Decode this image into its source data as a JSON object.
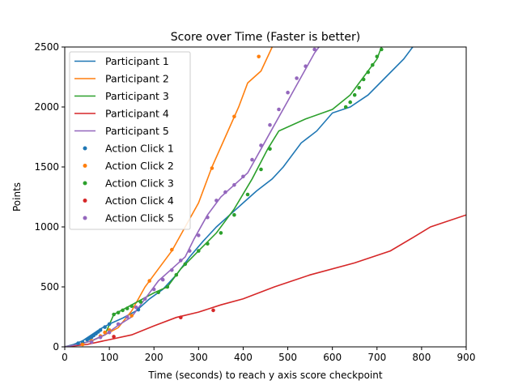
{
  "chart_data": {
    "type": "line",
    "title": "Score over Time (Faster is better)",
    "xlabel": "Time (seconds) to reach y axis score checkpoint",
    "ylabel": "Points",
    "xlim": [
      0,
      900
    ],
    "ylim": [
      0,
      2500
    ],
    "xticks": [
      0,
      100,
      200,
      300,
      400,
      500,
      600,
      700,
      800,
      900
    ],
    "yticks": [
      0,
      500,
      1000,
      1500,
      2000,
      2500
    ],
    "grid": false,
    "legend_position": "upper left",
    "series": [
      {
        "name": "Participant 1",
        "color": "#1f77b4",
        "x": [
          0,
          20,
          40,
          60,
          80,
          100,
          130,
          160,
          190,
          220,
          250,
          280,
          310,
          340,
          370,
          400,
          430,
          465,
          490,
          530,
          565,
          600,
          640,
          680,
          720,
          760,
          780
        ],
        "y": [
          0,
          20,
          50,
          100,
          150,
          190,
          240,
          300,
          400,
          480,
          600,
          750,
          880,
          1000,
          1100,
          1200,
          1300,
          1400,
          1500,
          1700,
          1800,
          1950,
          2000,
          2100,
          2250,
          2400,
          2500
        ]
      },
      {
        "name": "Participant 2",
        "color": "#ff7f0e",
        "x": [
          0,
          30,
          60,
          90,
          120,
          150,
          180,
          210,
          240,
          270,
          300,
          330,
          360,
          390,
          410,
          440,
          465
        ],
        "y": [
          0,
          20,
          50,
          100,
          160,
          300,
          500,
          650,
          800,
          1000,
          1200,
          1500,
          1750,
          2000,
          2200,
          2300,
          2500
        ]
      },
      {
        "name": "Participant 3",
        "color": "#2ca02c",
        "x": [
          0,
          30,
          60,
          90,
          110,
          150,
          200,
          230,
          260,
          300,
          340,
          380,
          420,
          455,
          480,
          540,
          600,
          640,
          670,
          700,
          710
        ],
        "y": [
          0,
          20,
          50,
          100,
          270,
          350,
          450,
          500,
          650,
          800,
          950,
          1150,
          1400,
          1650,
          1800,
          1900,
          1980,
          2100,
          2250,
          2400,
          2500
        ]
      },
      {
        "name": "Participant 4",
        "color": "#d62728",
        "x": [
          0,
          50,
          100,
          150,
          200,
          250,
          300,
          350,
          400,
          470,
          550,
          650,
          730,
          780,
          820,
          900
        ],
        "y": [
          0,
          20,
          60,
          100,
          175,
          245,
          290,
          350,
          400,
          500,
          600,
          700,
          800,
          910,
          1000,
          1100
        ]
      },
      {
        "name": "Participant 5",
        "color": "#9467bd",
        "x": [
          0,
          30,
          60,
          90,
          120,
          150,
          180,
          210,
          240,
          270,
          290,
          320,
          350,
          380,
          410,
          440,
          470,
          500,
          530,
          560,
          570
        ],
        "y": [
          0,
          20,
          50,
          100,
          180,
          250,
          400,
          550,
          650,
          750,
          900,
          1100,
          1250,
          1350,
          1450,
          1650,
          1850,
          2050,
          2250,
          2450,
          2500
        ]
      }
    ],
    "scatter_series": [
      {
        "name": "Action Click 1",
        "color": "#1f77b4",
        "x": [
          30,
          40,
          50,
          55,
          60,
          65,
          70,
          75,
          80,
          90,
          100,
          165
        ],
        "y": [
          30,
          40,
          60,
          70,
          80,
          95,
          110,
          125,
          140,
          165,
          190,
          310
        ]
      },
      {
        "name": "Action Click 2",
        "color": "#ff7f0e",
        "x": [
          40,
          60,
          80,
          90,
          100,
          150,
          190,
          240,
          330,
          380,
          435
        ],
        "y": [
          20,
          50,
          90,
          120,
          140,
          260,
          550,
          810,
          1490,
          1920,
          2420
        ]
      },
      {
        "name": "Action Click 3",
        "color": "#2ca02c",
        "x": [
          110,
          120,
          130,
          140,
          150,
          170,
          210,
          230,
          250,
          270,
          300,
          320,
          350,
          380,
          410,
          440,
          460,
          630,
          640,
          650,
          660,
          670,
          680,
          690,
          700,
          710
        ],
        "y": [
          270,
          285,
          305,
          320,
          340,
          375,
          455,
          500,
          600,
          690,
          800,
          860,
          950,
          1100,
          1270,
          1480,
          1650,
          2000,
          2040,
          2100,
          2160,
          2230,
          2290,
          2350,
          2420,
          2480
        ]
      },
      {
        "name": "Action Click 4",
        "color": "#d62728",
        "x": [
          110,
          260,
          333
        ],
        "y": [
          85,
          245,
          305
        ]
      },
      {
        "name": "Action Click 5",
        "color": "#9467bd",
        "x": [
          60,
          80,
          100,
          120,
          140,
          160,
          180,
          200,
          220,
          240,
          260,
          280,
          300,
          320,
          340,
          360,
          380,
          400,
          420,
          440,
          460,
          480,
          500,
          520,
          540,
          560
        ],
        "y": [
          40,
          80,
          120,
          190,
          250,
          330,
          400,
          480,
          560,
          640,
          720,
          800,
          930,
          1080,
          1220,
          1290,
          1350,
          1420,
          1560,
          1680,
          1850,
          1980,
          2120,
          2240,
          2340,
          2480
        ]
      }
    ]
  }
}
